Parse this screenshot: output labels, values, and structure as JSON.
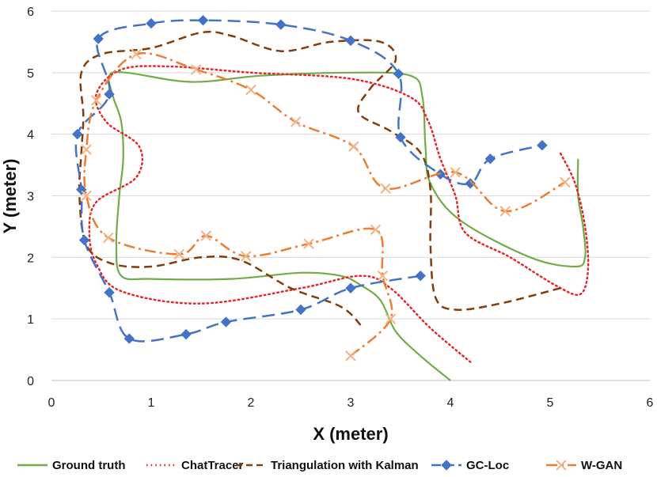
{
  "chart_data": {
    "type": "line",
    "title": "",
    "xlabel": "X (meter)",
    "ylabel": "Y (meter)",
    "xlim": [
      0,
      6
    ],
    "ylim": [
      0,
      6
    ],
    "xticks": [
      0,
      1,
      2,
      3,
      4,
      5,
      6
    ],
    "yticks": [
      0,
      1,
      2,
      3,
      4,
      5,
      6
    ],
    "grid": "horizontal",
    "legend": "bottom",
    "series": [
      {
        "name": "Ground truth",
        "color": "#70AD47",
        "style": "solid",
        "marker": "none",
        "points": [
          [
            4.0,
            0.0
          ],
          [
            3.7,
            0.4
          ],
          [
            3.45,
            0.8
          ],
          [
            3.3,
            1.3
          ],
          [
            3.1,
            1.55
          ],
          [
            2.9,
            1.7
          ],
          [
            2.5,
            1.75
          ],
          [
            1.8,
            1.65
          ],
          [
            1.0,
            1.65
          ],
          [
            0.7,
            1.7
          ],
          [
            0.65,
            2.2
          ],
          [
            0.68,
            3.0
          ],
          [
            0.72,
            3.6
          ],
          [
            0.7,
            4.2
          ],
          [
            0.62,
            4.6
          ],
          [
            0.58,
            4.95
          ],
          [
            0.75,
            5.0
          ],
          [
            1.4,
            4.85
          ],
          [
            2.1,
            4.95
          ],
          [
            3.0,
            5.0
          ],
          [
            3.6,
            4.95
          ],
          [
            3.72,
            4.6
          ],
          [
            3.75,
            3.8
          ],
          [
            3.8,
            3.2
          ],
          [
            4.1,
            2.6
          ],
          [
            4.8,
            2.0
          ],
          [
            5.25,
            1.85
          ],
          [
            5.35,
            2.0
          ],
          [
            5.33,
            2.5
          ],
          [
            5.28,
            3.0
          ],
          [
            5.28,
            3.6
          ]
        ]
      },
      {
        "name": "ChatTracer",
        "color": "#E8262A",
        "style": "dotted",
        "marker": "none",
        "points": [
          [
            4.2,
            0.3
          ],
          [
            3.8,
            0.85
          ],
          [
            3.4,
            1.5
          ],
          [
            3.1,
            1.7
          ],
          [
            2.5,
            1.5
          ],
          [
            1.5,
            1.25
          ],
          [
            0.7,
            1.45
          ],
          [
            0.45,
            1.9
          ],
          [
            0.38,
            2.4
          ],
          [
            0.45,
            2.9
          ],
          [
            0.85,
            3.3
          ],
          [
            0.88,
            3.8
          ],
          [
            0.55,
            4.2
          ],
          [
            0.45,
            4.65
          ],
          [
            0.7,
            5.05
          ],
          [
            1.2,
            5.1
          ],
          [
            2.0,
            5.0
          ],
          [
            3.0,
            4.9
          ],
          [
            3.6,
            4.6
          ],
          [
            3.78,
            4.2
          ],
          [
            3.9,
            3.6
          ],
          [
            4.05,
            3.0
          ],
          [
            4.15,
            2.4
          ],
          [
            4.6,
            2.0
          ],
          [
            5.05,
            1.55
          ],
          [
            5.3,
            1.4
          ],
          [
            5.38,
            1.8
          ],
          [
            5.35,
            2.5
          ],
          [
            5.25,
            3.2
          ],
          [
            5.1,
            3.7
          ]
        ]
      },
      {
        "name": "Triangulation with Kalman",
        "color": "#843C0C",
        "style": "dashed",
        "marker": "none",
        "points": [
          [
            3.1,
            0.9
          ],
          [
            2.9,
            1.2
          ],
          [
            2.4,
            1.5
          ],
          [
            1.9,
            1.95
          ],
          [
            1.5,
            2.0
          ],
          [
            1.0,
            1.85
          ],
          [
            0.6,
            1.9
          ],
          [
            0.35,
            2.2
          ],
          [
            0.28,
            3.0
          ],
          [
            0.3,
            3.7
          ],
          [
            0.32,
            4.3
          ],
          [
            0.3,
            5.0
          ],
          [
            0.5,
            5.3
          ],
          [
            1.0,
            5.4
          ],
          [
            1.5,
            5.65
          ],
          [
            1.8,
            5.6
          ],
          [
            2.3,
            5.35
          ],
          [
            2.8,
            5.5
          ],
          [
            3.3,
            5.5
          ],
          [
            3.45,
            5.2
          ],
          [
            3.2,
            4.75
          ],
          [
            3.08,
            4.35
          ],
          [
            3.4,
            4.05
          ],
          [
            3.7,
            3.7
          ],
          [
            3.8,
            3.1
          ],
          [
            3.8,
            2.2
          ],
          [
            3.85,
            1.35
          ],
          [
            4.05,
            1.15
          ],
          [
            4.5,
            1.25
          ],
          [
            5.1,
            1.5
          ]
        ]
      },
      {
        "name": "GC-Loc",
        "color": "#4472C4",
        "style": "longdash",
        "marker": "diamond",
        "points": [
          [
            3.7,
            1.7
          ],
          [
            3.0,
            1.5
          ],
          [
            2.5,
            1.15
          ],
          [
            1.75,
            0.95
          ],
          [
            1.35,
            0.75
          ],
          [
            0.78,
            0.68
          ],
          [
            0.58,
            1.43
          ],
          [
            0.33,
            2.28
          ],
          [
            0.3,
            3.1
          ],
          [
            0.26,
            4.0
          ],
          [
            0.58,
            4.65
          ],
          [
            0.47,
            5.55
          ],
          [
            1.0,
            5.8
          ],
          [
            1.52,
            5.85
          ],
          [
            2.3,
            5.78
          ],
          [
            3.0,
            5.52
          ],
          [
            3.48,
            4.98
          ],
          [
            3.5,
            3.95
          ],
          [
            3.9,
            3.35
          ],
          [
            4.2,
            3.2
          ],
          [
            4.4,
            3.6
          ],
          [
            4.92,
            3.82
          ]
        ]
      },
      {
        "name": "W-GAN",
        "color": "#ED7D31",
        "style": "dashdot",
        "marker": "x",
        "points": [
          [
            3.0,
            0.4
          ],
          [
            3.4,
            1.0
          ],
          [
            3.32,
            1.7
          ],
          [
            3.25,
            2.45
          ],
          [
            2.58,
            2.22
          ],
          [
            1.95,
            2.02
          ],
          [
            1.55,
            2.35
          ],
          [
            1.28,
            2.05
          ],
          [
            0.57,
            2.32
          ],
          [
            0.35,
            3.0
          ],
          [
            0.35,
            3.75
          ],
          [
            0.45,
            4.55
          ],
          [
            0.85,
            5.3
          ],
          [
            1.45,
            5.05
          ],
          [
            2.0,
            4.72
          ],
          [
            2.45,
            4.2
          ],
          [
            3.03,
            3.8
          ],
          [
            3.35,
            3.12
          ],
          [
            4.05,
            3.38
          ],
          [
            4.55,
            2.75
          ],
          [
            5.15,
            3.22
          ]
        ]
      }
    ]
  }
}
